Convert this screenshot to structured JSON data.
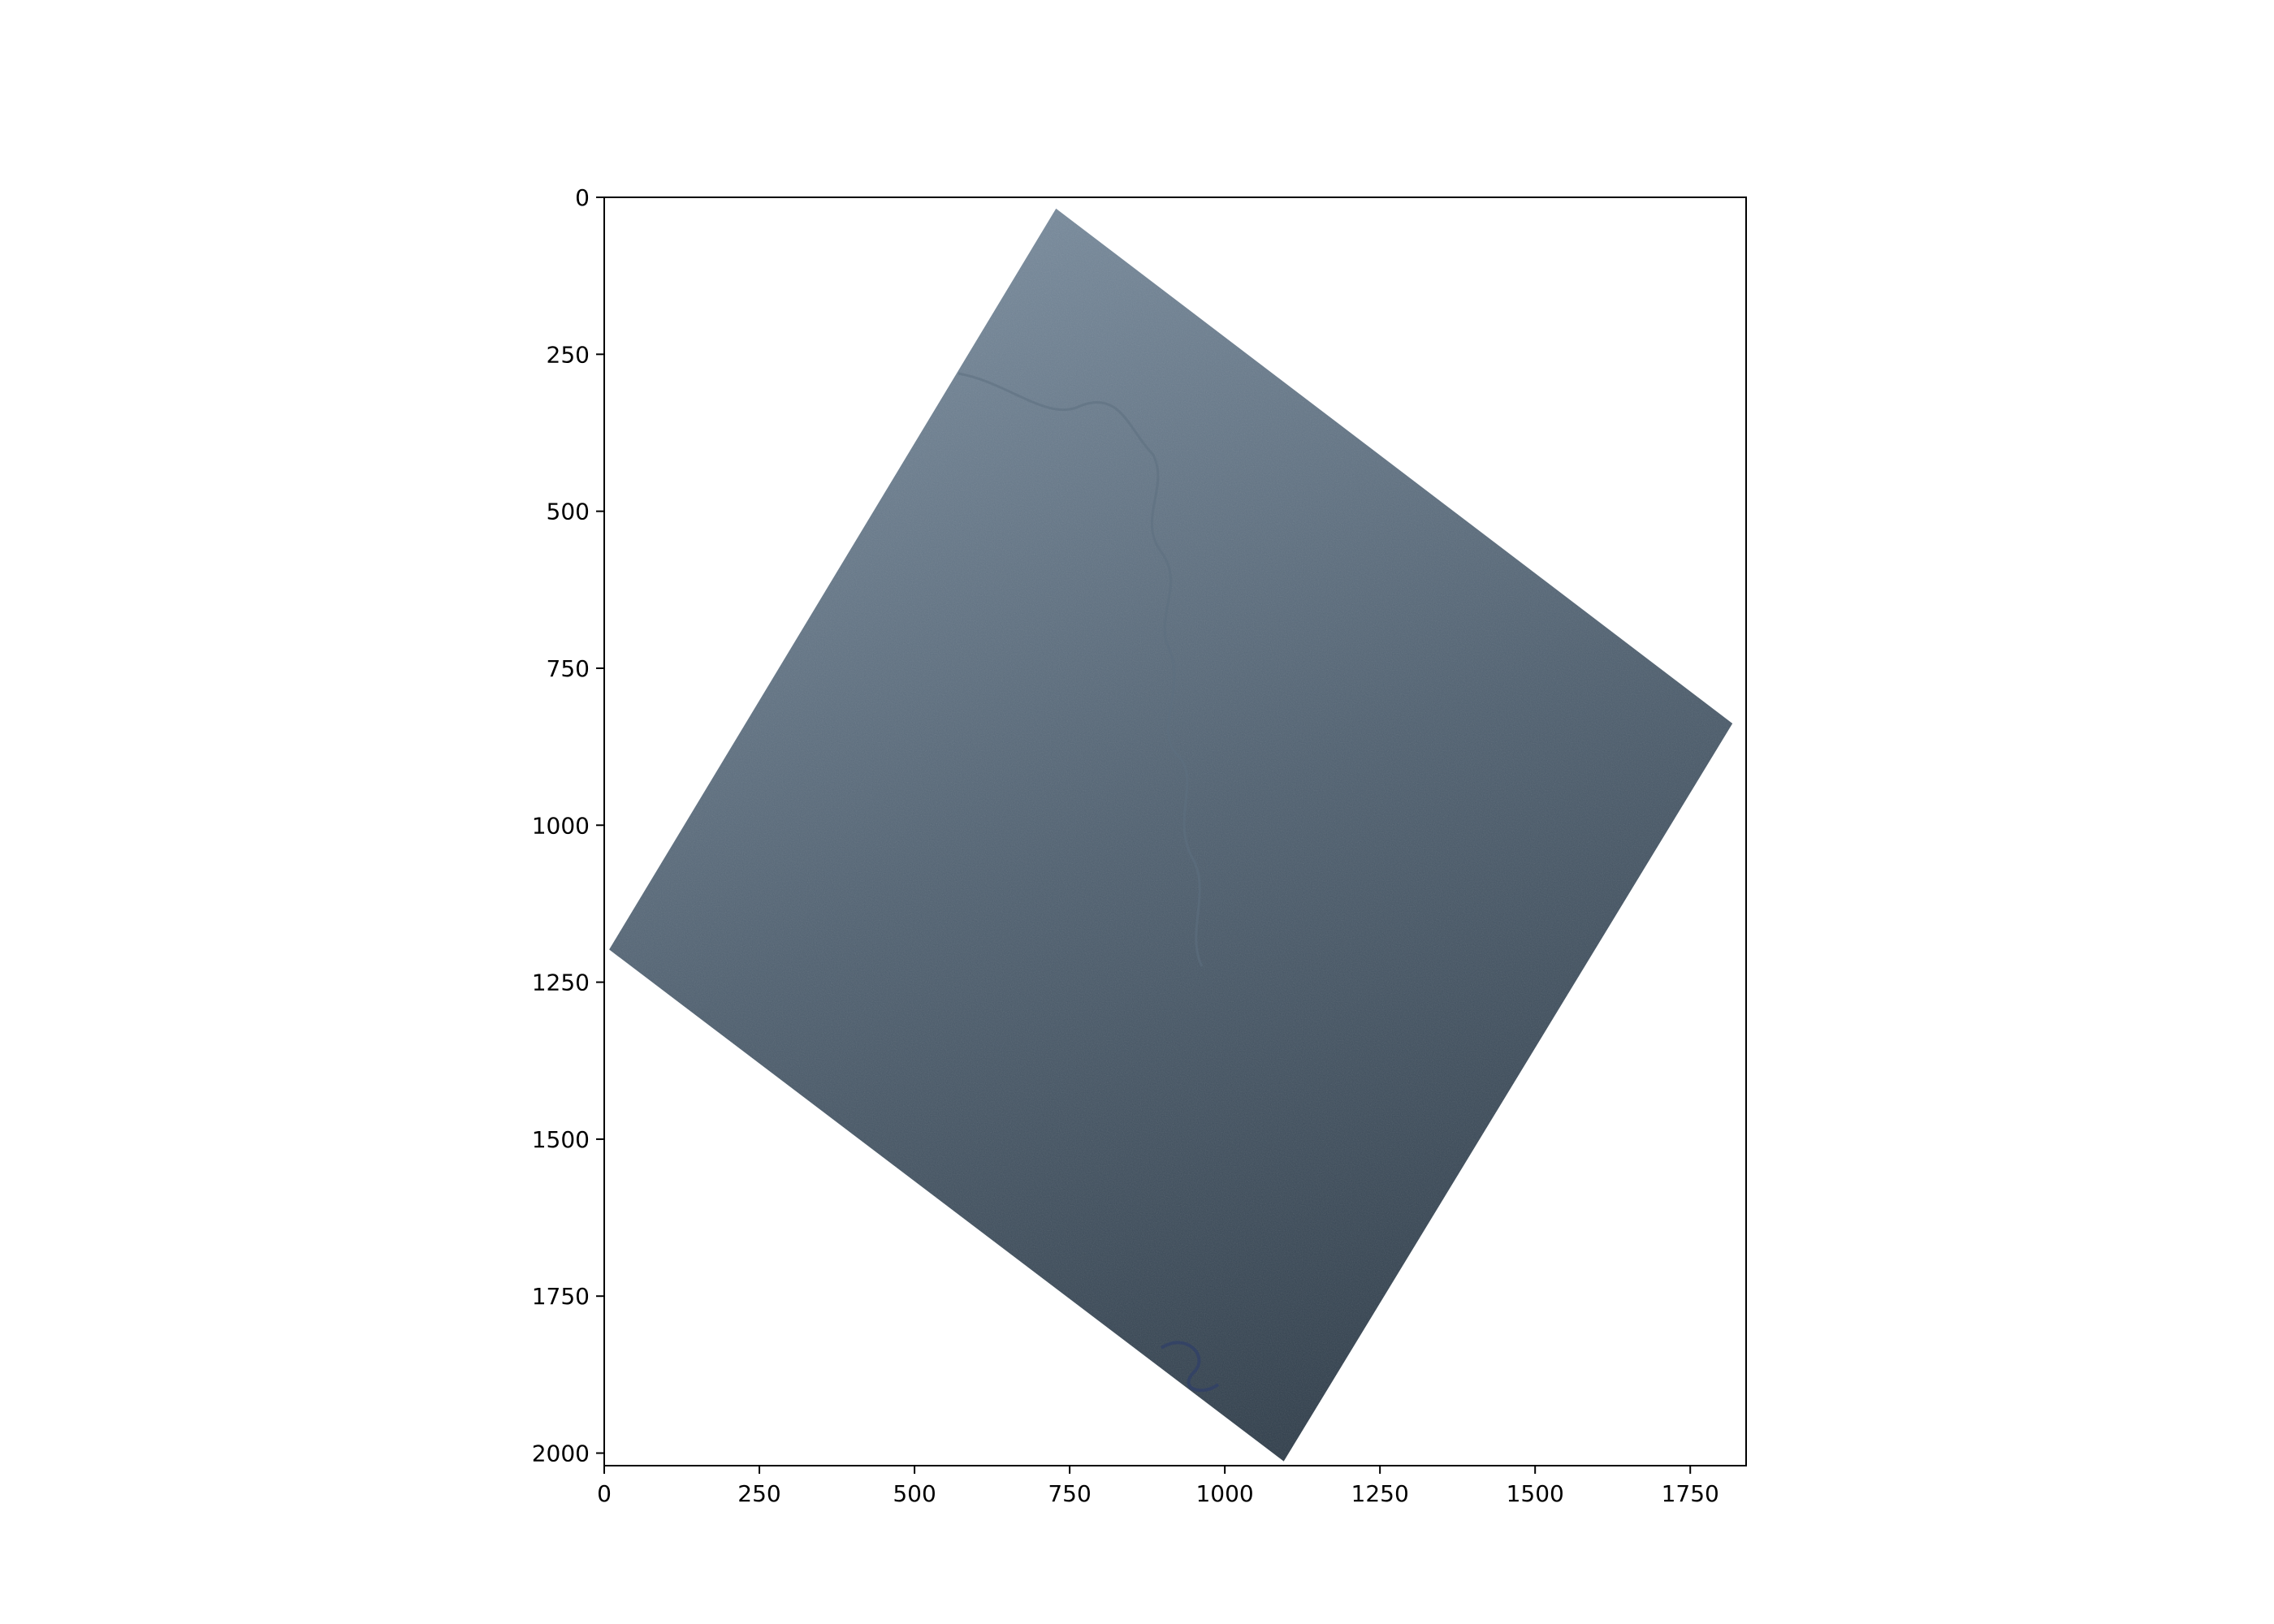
{
  "chart_data": {
    "type": "image",
    "xlim": [
      0,
      1840
    ],
    "ylim": [
      2020,
      0
    ],
    "x_ticks": [
      0,
      250,
      500,
      750,
      1000,
      1250,
      1500,
      1750
    ],
    "y_ticks": [
      0,
      250,
      500,
      750,
      1000,
      1250,
      1500,
      1750,
      2000
    ],
    "x_tick_labels": [
      "0",
      "250",
      "500",
      "750",
      "1000",
      "1250",
      "1500",
      "1750"
    ],
    "y_tick_labels": [
      "0",
      "250",
      "500",
      "750",
      "1000",
      "1250",
      "1500",
      "1750",
      "2000"
    ],
    "footprint": [
      [
        728,
        18
      ],
      [
        1818,
        838
      ],
      [
        1095,
        2013
      ],
      [
        8,
        1198
      ]
    ],
    "scene_colors": {
      "light": "#7a8d9f",
      "mid": "#4f6070",
      "dark": "#2c3a47",
      "axis": "#000000"
    }
  }
}
